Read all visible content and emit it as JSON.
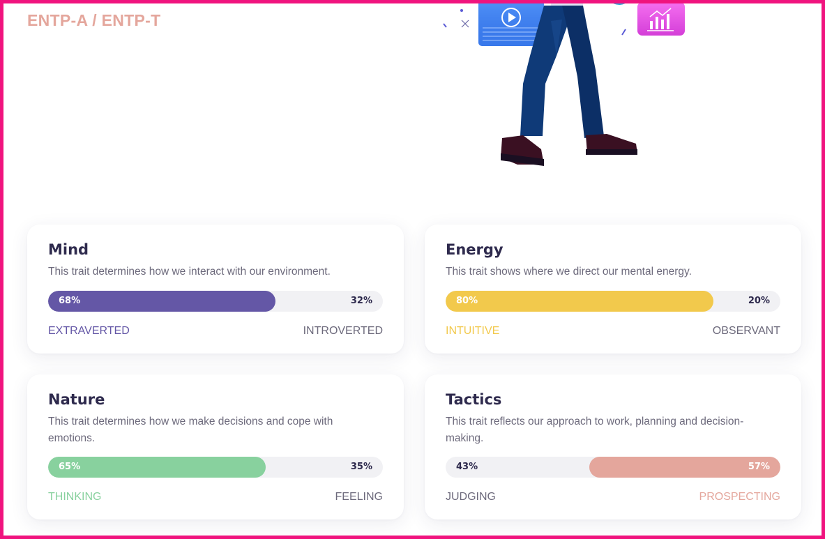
{
  "header": {
    "type_label": "ENTP-A / ENTP-T"
  },
  "colors": {
    "frame": "#f0147e",
    "type_label": "#e4a69c",
    "mind": "#6457a6",
    "energy": "#f2c94c",
    "nature": "#88d19e",
    "tactics": "#e4a69c",
    "muted": "#6d6a7c",
    "bar_track": "#f1f1f4"
  },
  "illustration": {
    "name": "person-walking-illustration",
    "icons": [
      "video-play-icon",
      "bar-chart-icon"
    ]
  },
  "traits": [
    {
      "id": "mind",
      "title": "Mind",
      "description": "This trait determines how we interact with our environment.",
      "left_pct": "68%",
      "right_pct": "32%",
      "dominant_fraction": 0.68,
      "dominant_side": "left",
      "left_label": "EXTRAVERTED",
      "right_label": "INTROVERTED"
    },
    {
      "id": "energy",
      "title": "Energy",
      "description": "This trait shows where we direct our mental energy.",
      "left_pct": "80%",
      "right_pct": "20%",
      "dominant_fraction": 0.8,
      "dominant_side": "left",
      "left_label": "INTUITIVE",
      "right_label": "OBSERVANT"
    },
    {
      "id": "nature",
      "title": "Nature",
      "description": "This trait determines how we make decisions and cope with emotions.",
      "left_pct": "65%",
      "right_pct": "35%",
      "dominant_fraction": 0.65,
      "dominant_side": "left",
      "left_label": "THINKING",
      "right_label": "FEELING"
    },
    {
      "id": "tactics",
      "title": "Tactics",
      "description": "This trait reflects our approach to work, planning and decision-making.",
      "left_pct": "43%",
      "right_pct": "57%",
      "dominant_fraction": 0.57,
      "dominant_side": "right",
      "left_label": "JUDGING",
      "right_label": "PROSPECTING"
    }
  ]
}
